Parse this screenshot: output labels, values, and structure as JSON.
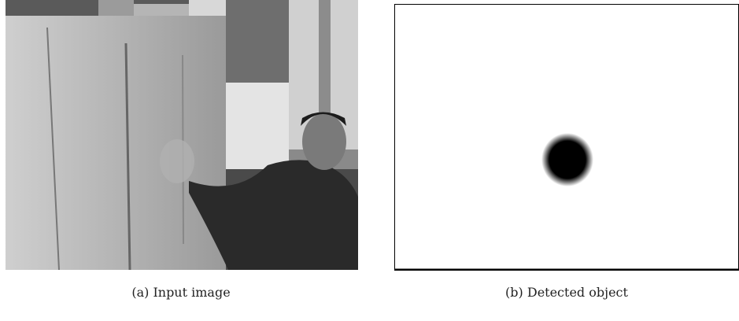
{
  "figure": {
    "panels": [
      {
        "caption": "(a) Input image"
      },
      {
        "caption": "(b) Detected object"
      }
    ]
  }
}
